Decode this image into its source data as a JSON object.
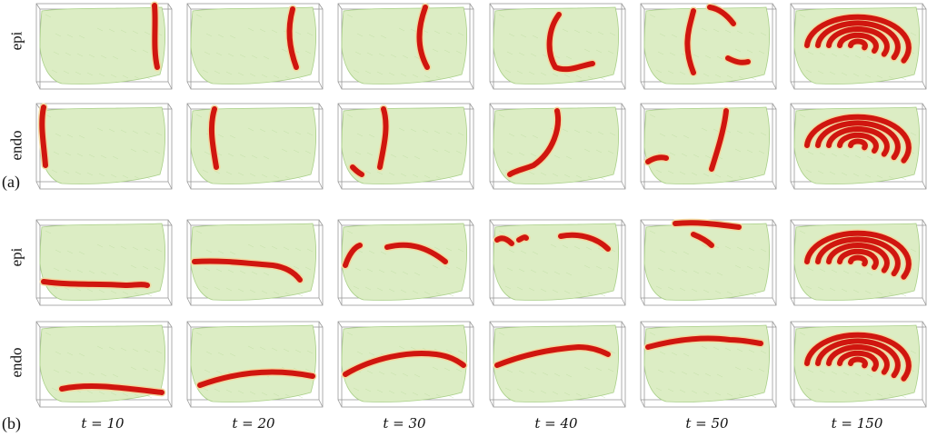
{
  "figure": {
    "panel_a_label": "(a)",
    "panel_b_label": "(b)",
    "rows": [
      {
        "label": "epi"
      },
      {
        "label": "endo"
      },
      {
        "label": "epi"
      },
      {
        "label": "endo"
      }
    ],
    "time_labels": [
      "t = 10",
      "t = 20",
      "t = 30",
      "t = 40",
      "t = 50",
      "t = 150"
    ],
    "colors": {
      "tissue": "#dcedc4",
      "tissue_stroke": "#a9cf88",
      "wave": "#d0160f",
      "wave_edge": "#f1d9a2",
      "box": "#9a9a9a"
    }
  }
}
